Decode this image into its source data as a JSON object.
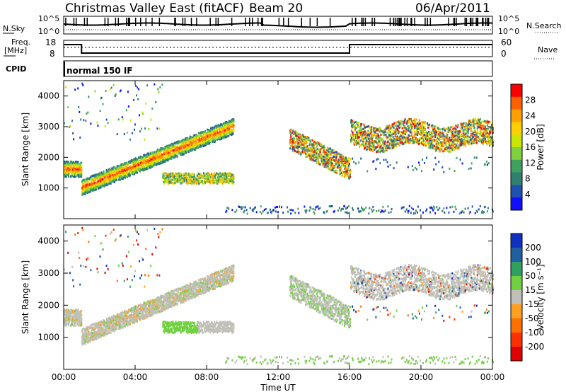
{
  "header": {
    "title": "Christmas Valley East (fitACF)",
    "beam": "Beam 20",
    "date": "06/Apr/2011"
  },
  "noise_panel": {
    "left_label": "N.Sky",
    "right_label": "N.Search",
    "left_ticks": [
      "10^5",
      "10^0"
    ],
    "right_ticks": [
      "10^5",
      "10^0"
    ]
  },
  "freq_panel": {
    "left_label_1": "Freq.",
    "left_label_2": "[MHz]",
    "right_label": "Nave",
    "left_ticks": [
      "18",
      "8"
    ],
    "right_ticks": [
      "60",
      "0"
    ]
  },
  "cpid_panel": {
    "label": "CPID",
    "text": "normal 150 IF"
  },
  "chart_data": [
    {
      "type": "heatmap",
      "name": "power",
      "ylabel": "Slant Range [km]",
      "xlabel": "",
      "x_range_hours": [
        0,
        24
      ],
      "ylim": [
        0,
        4500
      ],
      "y_ticks": [
        "1000",
        "2000",
        "3000",
        "4000"
      ],
      "colorbar": {
        "label": "Power [dB]",
        "ticks": [
          "28",
          "24",
          "20",
          "16",
          "12",
          "8",
          "4"
        ],
        "colors": [
          "#ff0000",
          "#ff6000",
          "#ffa000",
          "#ffd000",
          "#c8e600",
          "#80d040",
          "#40a060",
          "#308070",
          "#2050b0",
          "#1010ff"
        ]
      },
      "features": [
        {
          "t0": 0.0,
          "t1": 1.0,
          "r0": 1550,
          "r1": 1650,
          "level": "high"
        },
        {
          "t0": 1.0,
          "t1": 9.5,
          "r0": 900,
          "r1": 3200,
          "level": "high"
        },
        {
          "t0": 5.5,
          "t1": 9.5,
          "r0": 1100,
          "r1": 1500,
          "level": "mid"
        },
        {
          "t0": 13.0,
          "t1": 16.0,
          "r0": 1200,
          "r1": 2400,
          "level": "high"
        },
        {
          "t0": 16.0,
          "t1": 24.0,
          "r0": 2300,
          "r1": 3200,
          "level": "high"
        }
      ]
    },
    {
      "type": "heatmap",
      "name": "velocity",
      "ylabel": "Slant Range [km]",
      "xlabel": "Time UT",
      "x_range_hours": [
        0,
        24
      ],
      "x_ticks": [
        "00:00",
        "04:00",
        "08:00",
        "12:00",
        "16:00",
        "20:00",
        "00:00"
      ],
      "ylim": [
        0,
        4500
      ],
      "y_ticks": [
        "1000",
        "2000",
        "3000",
        "4000"
      ],
      "colorbar": {
        "label": "Velocity [m s⁻¹]",
        "ticks": [
          "200",
          "100",
          "50",
          "15",
          "-15",
          "-50",
          "-100",
          "-200"
        ],
        "colors": [
          "#1030c0",
          "#2060a0",
          "#30a060",
          "#70d040",
          "#c0c0b8",
          "#ffa020",
          "#ff7000",
          "#ff3000",
          "#e00000"
        ]
      }
    }
  ]
}
